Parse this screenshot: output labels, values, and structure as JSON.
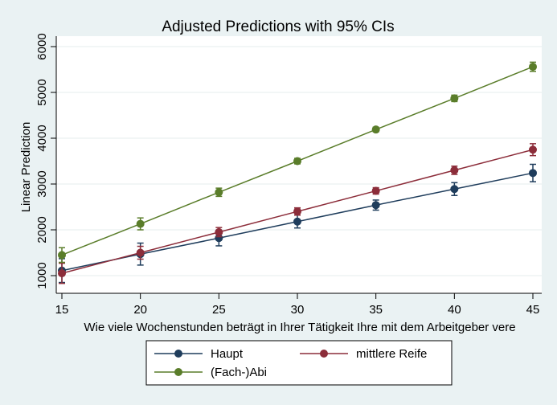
{
  "chart_data": {
    "type": "line",
    "title": "Adjusted Predictions with 95% CIs",
    "xlabel": "Wie viele Wochenstunden beträgt in Ihrer Tätigkeit Ihre mit dem Arbeitgeber vere",
    "ylabel": "Linear Prediction",
    "x": [
      15,
      20,
      25,
      30,
      35,
      40,
      45
    ],
    "xlim": [
      15,
      45
    ],
    "ylim": [
      1000,
      6000
    ],
    "xticks": [
      15,
      20,
      25,
      30,
      35,
      40,
      45
    ],
    "yticks": [
      1000,
      2000,
      3000,
      4000,
      5000,
      6000
    ],
    "grid": true,
    "legend": "bottom",
    "series": [
      {
        "name": "Haupt",
        "color": "#1f3d5c",
        "values": [
          1110,
          1470,
          1820,
          2180,
          2540,
          2890,
          3240
        ],
        "ci_low": [
          850,
          1230,
          1650,
          2040,
          2430,
          2750,
          3050
        ],
        "ci_high": [
          1370,
          1710,
          1990,
          2320,
          2650,
          3030,
          3430
        ]
      },
      {
        "name": "mittlere Reife",
        "color": "#8c2d3a",
        "values": [
          1050,
          1500,
          1950,
          2400,
          2850,
          3300,
          3750
        ],
        "ci_low": [
          830,
          1360,
          1850,
          2320,
          2780,
          3210,
          3620
        ],
        "ci_high": [
          1270,
          1640,
          2050,
          2480,
          2920,
          3390,
          3880
        ]
      },
      {
        "name": "(Fach-)Abi",
        "color": "#5a7d2a",
        "values": [
          1450,
          2130,
          2820,
          3500,
          4190,
          4870,
          5560
        ],
        "ci_low": [
          1290,
          2000,
          2730,
          3440,
          4140,
          4800,
          5460
        ],
        "ci_high": [
          1610,
          2260,
          2910,
          3560,
          4240,
          4940,
          5660
        ]
      }
    ]
  }
}
